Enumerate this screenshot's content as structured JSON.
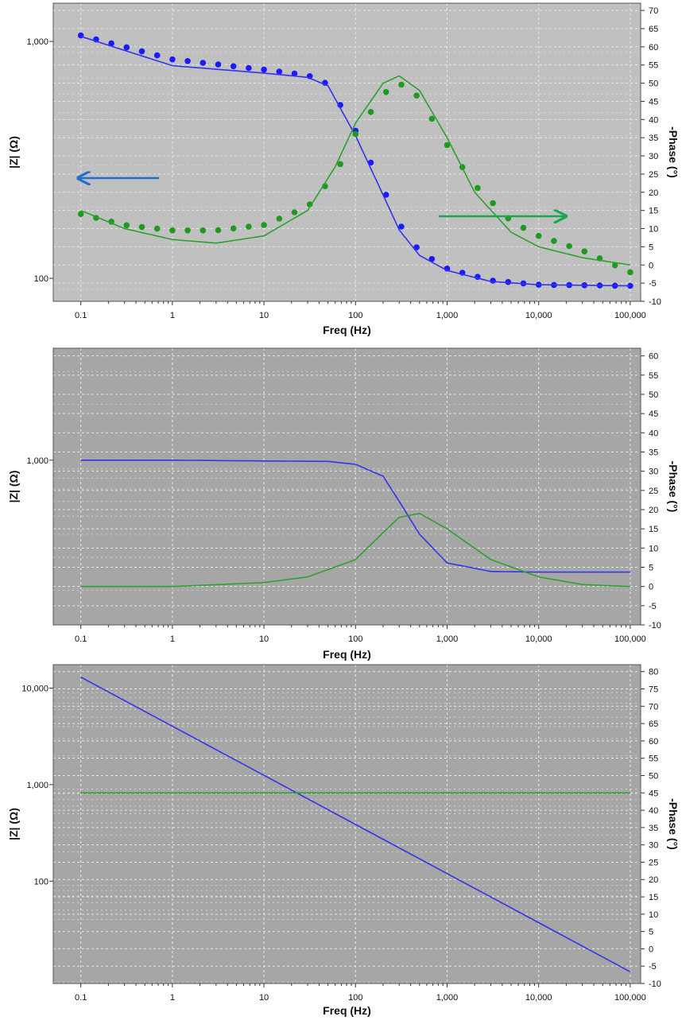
{
  "colors": {
    "magnitude": "#1a1aff",
    "magnitude_line": "#3434e8",
    "phase": "#1f9a1f",
    "phase_line": "#2fa02f",
    "left_arrow": "#1f6fd1",
    "right_arrow": "#19a84f",
    "plot_bg_1": "#c0c0c0",
    "plot_bg_2": "#a6a6a6",
    "plot_bg_3": "#a6a6a6"
  },
  "chart_data": [
    {
      "type": "scatter",
      "title": "",
      "xlabel": "Freq (Hz)",
      "ylabel": "|Z| (Ω)",
      "y2label": "-Phase (°)",
      "xscale": "log",
      "yscale": "log",
      "xlim": [
        0.05,
        130000
      ],
      "ylim": [
        80,
        1450
      ],
      "y2lim": [
        -10,
        72
      ],
      "x_ticks": [
        0.1,
        1,
        10,
        100,
        1000,
        10000,
        100000
      ],
      "x_tick_labels": [
        "0.1",
        "1",
        "10",
        "100",
        "1,000",
        "10,000",
        "100,000"
      ],
      "y_ticks": [
        100,
        1000
      ],
      "y_tick_labels": [
        "100",
        "1,000"
      ],
      "y2_ticks": [
        -10,
        -5,
        0,
        5,
        10,
        15,
        20,
        25,
        30,
        35,
        40,
        45,
        50,
        55,
        60,
        65,
        70
      ],
      "y2_tick_labels": [
        "-10",
        "-5",
        "0",
        "5",
        "10",
        "15",
        "20",
        "25",
        "30",
        "35",
        "40",
        "45",
        "50",
        "55",
        "60",
        "65",
        "70"
      ],
      "grid": true,
      "arrows": [
        {
          "points_to": "left axis",
          "series": "magnitude"
        },
        {
          "points_to": "right axis",
          "series": "phase"
        }
      ],
      "series": [
        {
          "axis": "left",
          "style": "markers",
          "color_key": "magnitude",
          "x": [
            0.1,
            1,
            10,
            30,
            50,
            100,
            200,
            300,
            500,
            1000,
            3000,
            10000,
            100000
          ],
          "y": [
            1060,
            840,
            760,
            720,
            660,
            420,
            240,
            170,
            130,
            110,
            98,
            94,
            93
          ]
        },
        {
          "axis": "left",
          "style": "line",
          "color_key": "magnitude_line",
          "x": [
            0.1,
            1,
            10,
            30,
            50,
            100,
            200,
            300,
            500,
            1000,
            3000,
            10000,
            100000
          ],
          "y": [
            1050,
            790,
            735,
            705,
            650,
            400,
            225,
            160,
            125,
            108,
            97,
            94,
            93
          ]
        },
        {
          "axis": "right",
          "style": "markers",
          "color_key": "phase",
          "x": [
            0.1,
            0.3,
            1,
            3,
            10,
            30,
            60,
            100,
            200,
            300,
            500,
            1000,
            2000,
            5000,
            10000,
            30000,
            100000
          ],
          "y": [
            14,
            11,
            9.5,
            9.5,
            11,
            16,
            25,
            36,
            47,
            50,
            46,
            33,
            22,
            12,
            8,
            4,
            -2
          ]
        },
        {
          "axis": "right",
          "style": "line",
          "color_key": "phase_line",
          "x": [
            0.1,
            0.3,
            1,
            3,
            10,
            30,
            60,
            100,
            200,
            300,
            500,
            1000,
            2000,
            5000,
            10000,
            30000,
            100000
          ],
          "y": [
            15,
            10,
            7,
            6,
            8,
            15,
            27,
            39,
            50,
            52,
            48,
            35,
            20,
            9,
            5,
            2,
            0
          ]
        }
      ]
    },
    {
      "type": "line",
      "title": "",
      "xlabel": "Freq (Hz)",
      "ylabel": "|Z| (Ω)",
      "y2label": "-Phase (°)",
      "xscale": "log",
      "yscale": "log",
      "xlim": [
        0.05,
        130000
      ],
      "ylim": [
        130,
        4000
      ],
      "y2lim": [
        -10,
        62
      ],
      "x_ticks": [
        0.1,
        1,
        10,
        100,
        1000,
        10000,
        100000
      ],
      "x_tick_labels": [
        "0.1",
        "1",
        "10",
        "100",
        "1,000",
        "10,000",
        "100,000"
      ],
      "y_ticks": [
        1000
      ],
      "y_tick_labels": [
        "1,000"
      ],
      "y2_ticks": [
        -10,
        -5,
        0,
        5,
        10,
        15,
        20,
        25,
        30,
        35,
        40,
        45,
        50,
        55,
        60
      ],
      "y2_tick_labels": [
        "-10",
        "-5",
        "0",
        "5",
        "10",
        "15",
        "20",
        "25",
        "30",
        "35",
        "40",
        "45",
        "50",
        "55",
        "60"
      ],
      "grid": true,
      "series": [
        {
          "axis": "left",
          "style": "line",
          "color_key": "magnitude_line",
          "x": [
            0.1,
            1,
            10,
            50,
            100,
            200,
            300,
            500,
            1000,
            3000,
            10000,
            100000
          ],
          "y": [
            1000,
            1000,
            990,
            985,
            950,
            820,
            600,
            400,
            280,
            252,
            250,
            250
          ]
        },
        {
          "axis": "right",
          "style": "line",
          "color_key": "phase_line",
          "x": [
            0.1,
            1,
            10,
            30,
            100,
            200,
            300,
            500,
            1000,
            3000,
            10000,
            30000,
            100000
          ],
          "y": [
            0,
            0,
            1,
            2.5,
            7,
            14,
            18,
            19,
            15,
            7,
            2.5,
            0.5,
            0
          ]
        }
      ]
    },
    {
      "type": "line",
      "title": "",
      "xlabel": "Freq (Hz)",
      "ylabel": "|Z| (Ω)",
      "y2label": "-Phase (°)",
      "xscale": "log",
      "yscale": "log",
      "xlim": [
        0.05,
        130000
      ],
      "ylim": [
        8.7,
        17500
      ],
      "y2lim": [
        -10,
        82
      ],
      "x_ticks": [
        0.1,
        1,
        10,
        100,
        1000,
        10000,
        100000
      ],
      "x_tick_labels": [
        "0.1",
        "1",
        "10",
        "100",
        "1,000",
        "10,000",
        "100,000"
      ],
      "y_ticks": [
        100,
        1000,
        10000
      ],
      "y_tick_labels": [
        "100",
        "1,000",
        "10,000"
      ],
      "y2_ticks": [
        -10,
        -5,
        0,
        5,
        10,
        15,
        20,
        25,
        30,
        35,
        40,
        45,
        50,
        55,
        60,
        65,
        70,
        75,
        80
      ],
      "y2_tick_labels": [
        "-10",
        "-5",
        "0",
        "5",
        "10",
        "15",
        "20",
        "25",
        "30",
        "35",
        "40",
        "45",
        "50",
        "55",
        "60",
        "65",
        "70",
        "75",
        "80"
      ],
      "grid": true,
      "series": [
        {
          "axis": "left",
          "style": "line",
          "color_key": "magnitude_line",
          "x": [
            0.1,
            100000
          ],
          "y": [
            13000,
            11.5
          ]
        },
        {
          "axis": "right",
          "style": "line",
          "color_key": "phase_line",
          "x": [
            0.1,
            100000
          ],
          "y": [
            45,
            45
          ]
        }
      ]
    }
  ]
}
